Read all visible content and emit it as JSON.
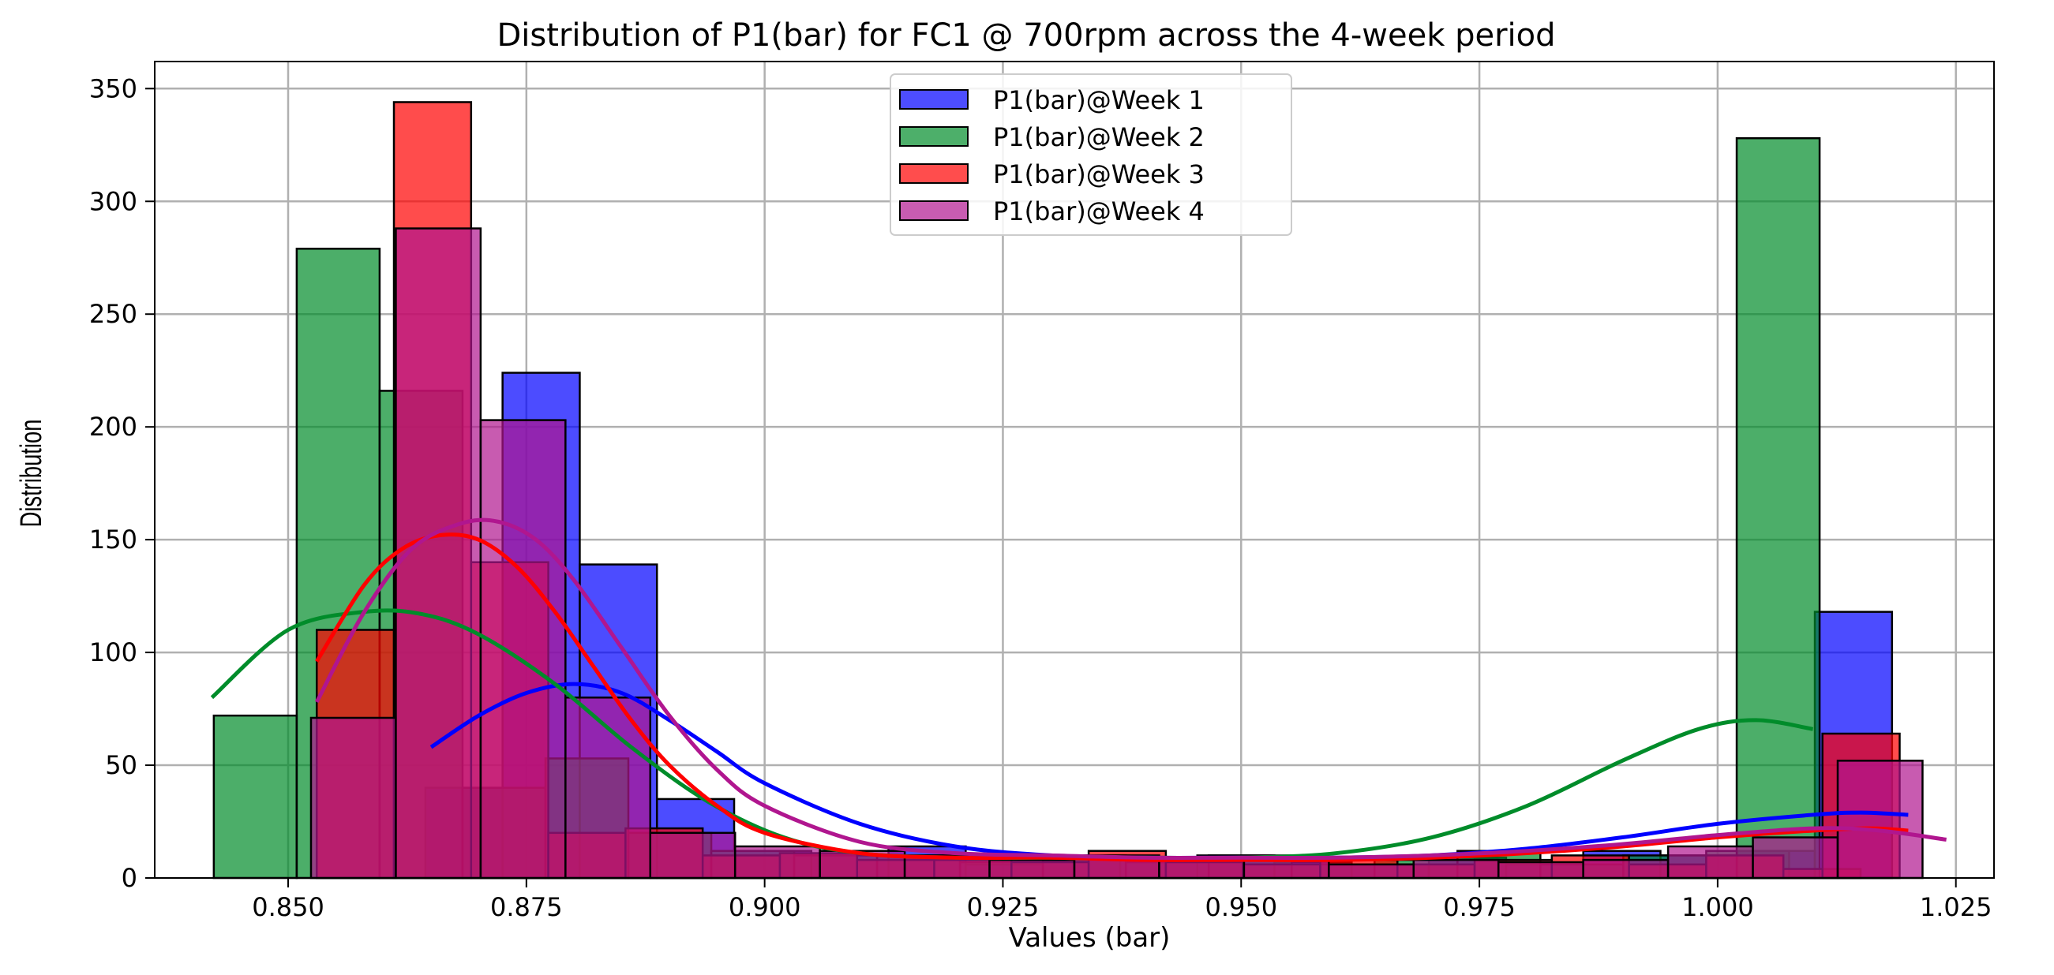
{
  "chart_data": {
    "type": "bar",
    "title": "Distribution of P1(bar) for FC1 @ 700rpm across the 4-week period",
    "xlabel": "Values (bar)",
    "ylabel": "Distribution",
    "xlim": [
      0.836,
      1.029
    ],
    "ylim": [
      0,
      362
    ],
    "xticks": [
      0.85,
      0.875,
      0.9,
      0.925,
      0.95,
      0.975,
      1.0,
      1.025
    ],
    "xtick_labels": [
      "0.850",
      "0.875",
      "0.900",
      "0.925",
      "0.950",
      "0.975",
      "1.000",
      "1.025"
    ],
    "yticks": [
      0,
      50,
      100,
      150,
      200,
      250,
      300,
      350
    ],
    "ytick_labels": [
      "0",
      "50",
      "100",
      "150",
      "200",
      "250",
      "300",
      "350"
    ],
    "grid": true,
    "legend_position": "top-center",
    "series": [
      {
        "name": "P1(bar)@Week 1",
        "color": "#0000ff",
        "bin_width": 0.0081,
        "bins": [
          {
            "x0": 0.8644,
            "count": 40
          },
          {
            "x0": 0.8725,
            "count": 224
          },
          {
            "x0": 0.8806,
            "count": 139
          },
          {
            "x0": 0.8887,
            "count": 35
          },
          {
            "x0": 0.8968,
            "count": 12
          },
          {
            "x0": 0.9049,
            "count": 10
          },
          {
            "x0": 0.913,
            "count": 14
          },
          {
            "x0": 0.9211,
            "count": 6
          },
          {
            "x0": 0.9292,
            "count": 8
          },
          {
            "x0": 0.9373,
            "count": 8
          },
          {
            "x0": 0.9454,
            "count": 10
          },
          {
            "x0": 0.9535,
            "count": 7
          },
          {
            "x0": 0.9616,
            "count": 6
          },
          {
            "x0": 0.9697,
            "count": 9
          },
          {
            "x0": 0.9778,
            "count": 6
          },
          {
            "x0": 0.9859,
            "count": 12
          },
          {
            "x0": 0.994,
            "count": 10
          },
          {
            "x0": 1.0021,
            "count": 12
          },
          {
            "x0": 1.0102,
            "count": 118
          }
        ],
        "kde": {
          "x": [
            0.865,
            0.87,
            0.875,
            0.88,
            0.885,
            0.89,
            0.895,
            0.9,
            0.91,
            0.92,
            0.93,
            0.94,
            0.95,
            0.96,
            0.97,
            0.98,
            0.99,
            1.0,
            1.01,
            1.015,
            1.02
          ],
          "y": [
            58,
            72,
            82,
            86,
            82,
            70,
            56,
            42,
            24,
            14,
            10,
            9,
            9,
            9,
            10,
            13,
            18,
            24,
            28,
            29,
            28
          ]
        }
      },
      {
        "name": "P1(bar)@Week 2",
        "color": "#008c2a",
        "bin_width": 0.0087,
        "bins": [
          {
            "x0": 0.8422,
            "count": 72
          },
          {
            "x0": 0.8509,
            "count": 279
          },
          {
            "x0": 0.8596,
            "count": 216
          },
          {
            "x0": 0.8683,
            "count": 40
          },
          {
            "x0": 0.877,
            "count": 53
          },
          {
            "x0": 0.8857,
            "count": 20
          },
          {
            "x0": 0.8944,
            "count": 12
          },
          {
            "x0": 0.9031,
            "count": 10
          },
          {
            "x0": 0.9118,
            "count": 10
          },
          {
            "x0": 0.9205,
            "count": 7
          },
          {
            "x0": 0.9292,
            "count": 10
          },
          {
            "x0": 0.9379,
            "count": 7
          },
          {
            "x0": 0.9466,
            "count": 10
          },
          {
            "x0": 0.9553,
            "count": 6
          },
          {
            "x0": 0.964,
            "count": 8
          },
          {
            "x0": 0.9727,
            "count": 12
          },
          {
            "x0": 0.9814,
            "count": 6
          },
          {
            "x0": 0.9901,
            "count": 10
          },
          {
            "x0": 0.9988,
            "count": 12
          },
          {
            "x0": 1.002,
            "count": 328
          }
        ],
        "kde": {
          "x": [
            0.842,
            0.85,
            0.858,
            0.864,
            0.87,
            0.878,
            0.886,
            0.894,
            0.902,
            0.91,
            0.92,
            0.93,
            0.94,
            0.95,
            0.96,
            0.97,
            0.98,
            0.99,
            0.998,
            1.004,
            1.01
          ],
          "y": [
            80,
            110,
            118,
            117,
            108,
            86,
            58,
            34,
            18,
            11,
            9,
            9,
            9,
            9,
            11,
            18,
            32,
            52,
            66,
            70,
            66
          ]
        }
      },
      {
        "name": "P1(bar)@Week 3",
        "color": "#ff0000",
        "bin_width": 0.0081,
        "bins": [
          {
            "x0": 0.853,
            "count": 110
          },
          {
            "x0": 0.8611,
            "count": 344
          },
          {
            "x0": 0.8692,
            "count": 140
          },
          {
            "x0": 0.8773,
            "count": 20
          },
          {
            "x0": 0.8854,
            "count": 22
          },
          {
            "x0": 0.8935,
            "count": 10
          },
          {
            "x0": 0.9016,
            "count": 11
          },
          {
            "x0": 0.9097,
            "count": 8
          },
          {
            "x0": 0.9178,
            "count": 8
          },
          {
            "x0": 0.9259,
            "count": 7
          },
          {
            "x0": 0.934,
            "count": 12
          },
          {
            "x0": 0.9421,
            "count": 7
          },
          {
            "x0": 0.9502,
            "count": 6
          },
          {
            "x0": 0.9583,
            "count": 8
          },
          {
            "x0": 0.9664,
            "count": 6
          },
          {
            "x0": 0.9745,
            "count": 8
          },
          {
            "x0": 0.9826,
            "count": 10
          },
          {
            "x0": 0.9907,
            "count": 6
          },
          {
            "x0": 0.9988,
            "count": 10
          },
          {
            "x0": 1.0069,
            "count": 4
          },
          {
            "x0": 1.011,
            "count": 64
          }
        ],
        "kde": {
          "x": [
            0.853,
            0.858,
            0.862,
            0.866,
            0.87,
            0.874,
            0.878,
            0.882,
            0.886,
            0.89,
            0.895,
            0.9,
            0.91,
            0.92,
            0.93,
            0.94,
            0.95,
            0.96,
            0.97,
            0.98,
            0.99,
            1.0,
            1.01,
            1.016,
            1.02
          ],
          "y": [
            96,
            130,
            146,
            152,
            150,
            138,
            118,
            94,
            70,
            50,
            32,
            20,
            11,
            9,
            9,
            8,
            8,
            8,
            9,
            11,
            14,
            18,
            21,
            22,
            21
          ]
        }
      },
      {
        "name": "P1(bar)@Week 4",
        "color": "#b0168f",
        "bin_width": 0.0089,
        "bins": [
          {
            "x0": 0.8524,
            "count": 71
          },
          {
            "x0": 0.8613,
            "count": 288
          },
          {
            "x0": 0.8702,
            "count": 203
          },
          {
            "x0": 0.8791,
            "count": 80
          },
          {
            "x0": 0.888,
            "count": 20
          },
          {
            "x0": 0.8969,
            "count": 14
          },
          {
            "x0": 0.9058,
            "count": 12
          },
          {
            "x0": 0.9147,
            "count": 10
          },
          {
            "x0": 0.9236,
            "count": 8
          },
          {
            "x0": 0.9325,
            "count": 10
          },
          {
            "x0": 0.9414,
            "count": 8
          },
          {
            "x0": 0.9503,
            "count": 8
          },
          {
            "x0": 0.9592,
            "count": 6
          },
          {
            "x0": 0.9681,
            "count": 8
          },
          {
            "x0": 0.977,
            "count": 7
          },
          {
            "x0": 0.9859,
            "count": 8
          },
          {
            "x0": 0.9948,
            "count": 14
          },
          {
            "x0": 1.0037,
            "count": 18
          },
          {
            "x0": 1.0126,
            "count": 52
          }
        ],
        "kde": {
          "x": [
            0.853,
            0.858,
            0.863,
            0.868,
            0.872,
            0.876,
            0.88,
            0.885,
            0.89,
            0.895,
            0.9,
            0.91,
            0.92,
            0.93,
            0.94,
            0.95,
            0.96,
            0.97,
            0.98,
            0.99,
            1.0,
            1.01,
            1.017,
            1.024
          ],
          "y": [
            78,
            118,
            146,
            157,
            158,
            150,
            132,
            102,
            72,
            48,
            32,
            16,
            11,
            10,
            9,
            9,
            9,
            10,
            12,
            15,
            19,
            22,
            21,
            17
          ]
        }
      }
    ]
  }
}
